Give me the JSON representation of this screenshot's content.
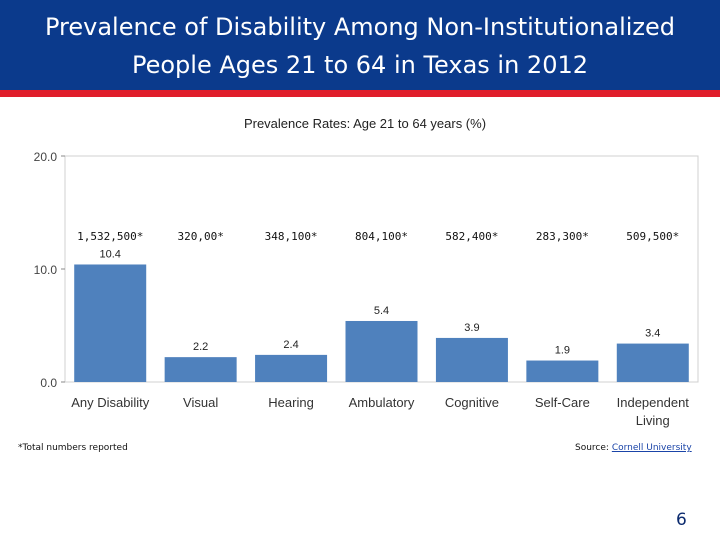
{
  "slide": {
    "title_line1": "Prevalence of Disability Among Non-Institutionalized",
    "title_line2": "People Ages 21 to 64 in Texas in 2012",
    "footnote": "*Total numbers reported",
    "source_label": "Source:",
    "source_link": "Cornell University",
    "page_number": "6"
  },
  "colors": {
    "header": "#0b3a8c",
    "stripe": "#e01e2b",
    "bar": "#4f81bd"
  },
  "chart_data": {
    "type": "bar",
    "title": "Prevalence Rates: Age 21 to 64 years (%)",
    "xlabel": "",
    "ylabel": "",
    "ylim": [
      0,
      20
    ],
    "yticks": [
      0,
      10,
      20
    ],
    "ytick_labels": [
      "0.0",
      "10.0",
      "20.0"
    ],
    "grid": false,
    "categories": [
      [
        "Any Disability"
      ],
      [
        "Visual"
      ],
      [
        "Hearing"
      ],
      [
        "Ambulatory"
      ],
      [
        "Cognitive"
      ],
      [
        "Self-Care"
      ],
      [
        "Independent",
        "Living"
      ]
    ],
    "values": [
      10.4,
      2.2,
      2.4,
      5.4,
      3.9,
      1.9,
      3.4
    ],
    "value_labels": [
      "10.4",
      "2.2",
      "2.4",
      "5.4",
      "3.9",
      "1.9",
      "3.4"
    ],
    "totals": [
      "1,532,500*",
      "320,00*",
      "348,100*",
      "804,100*",
      "582,400*",
      "283,300*",
      "509,500*"
    ]
  }
}
